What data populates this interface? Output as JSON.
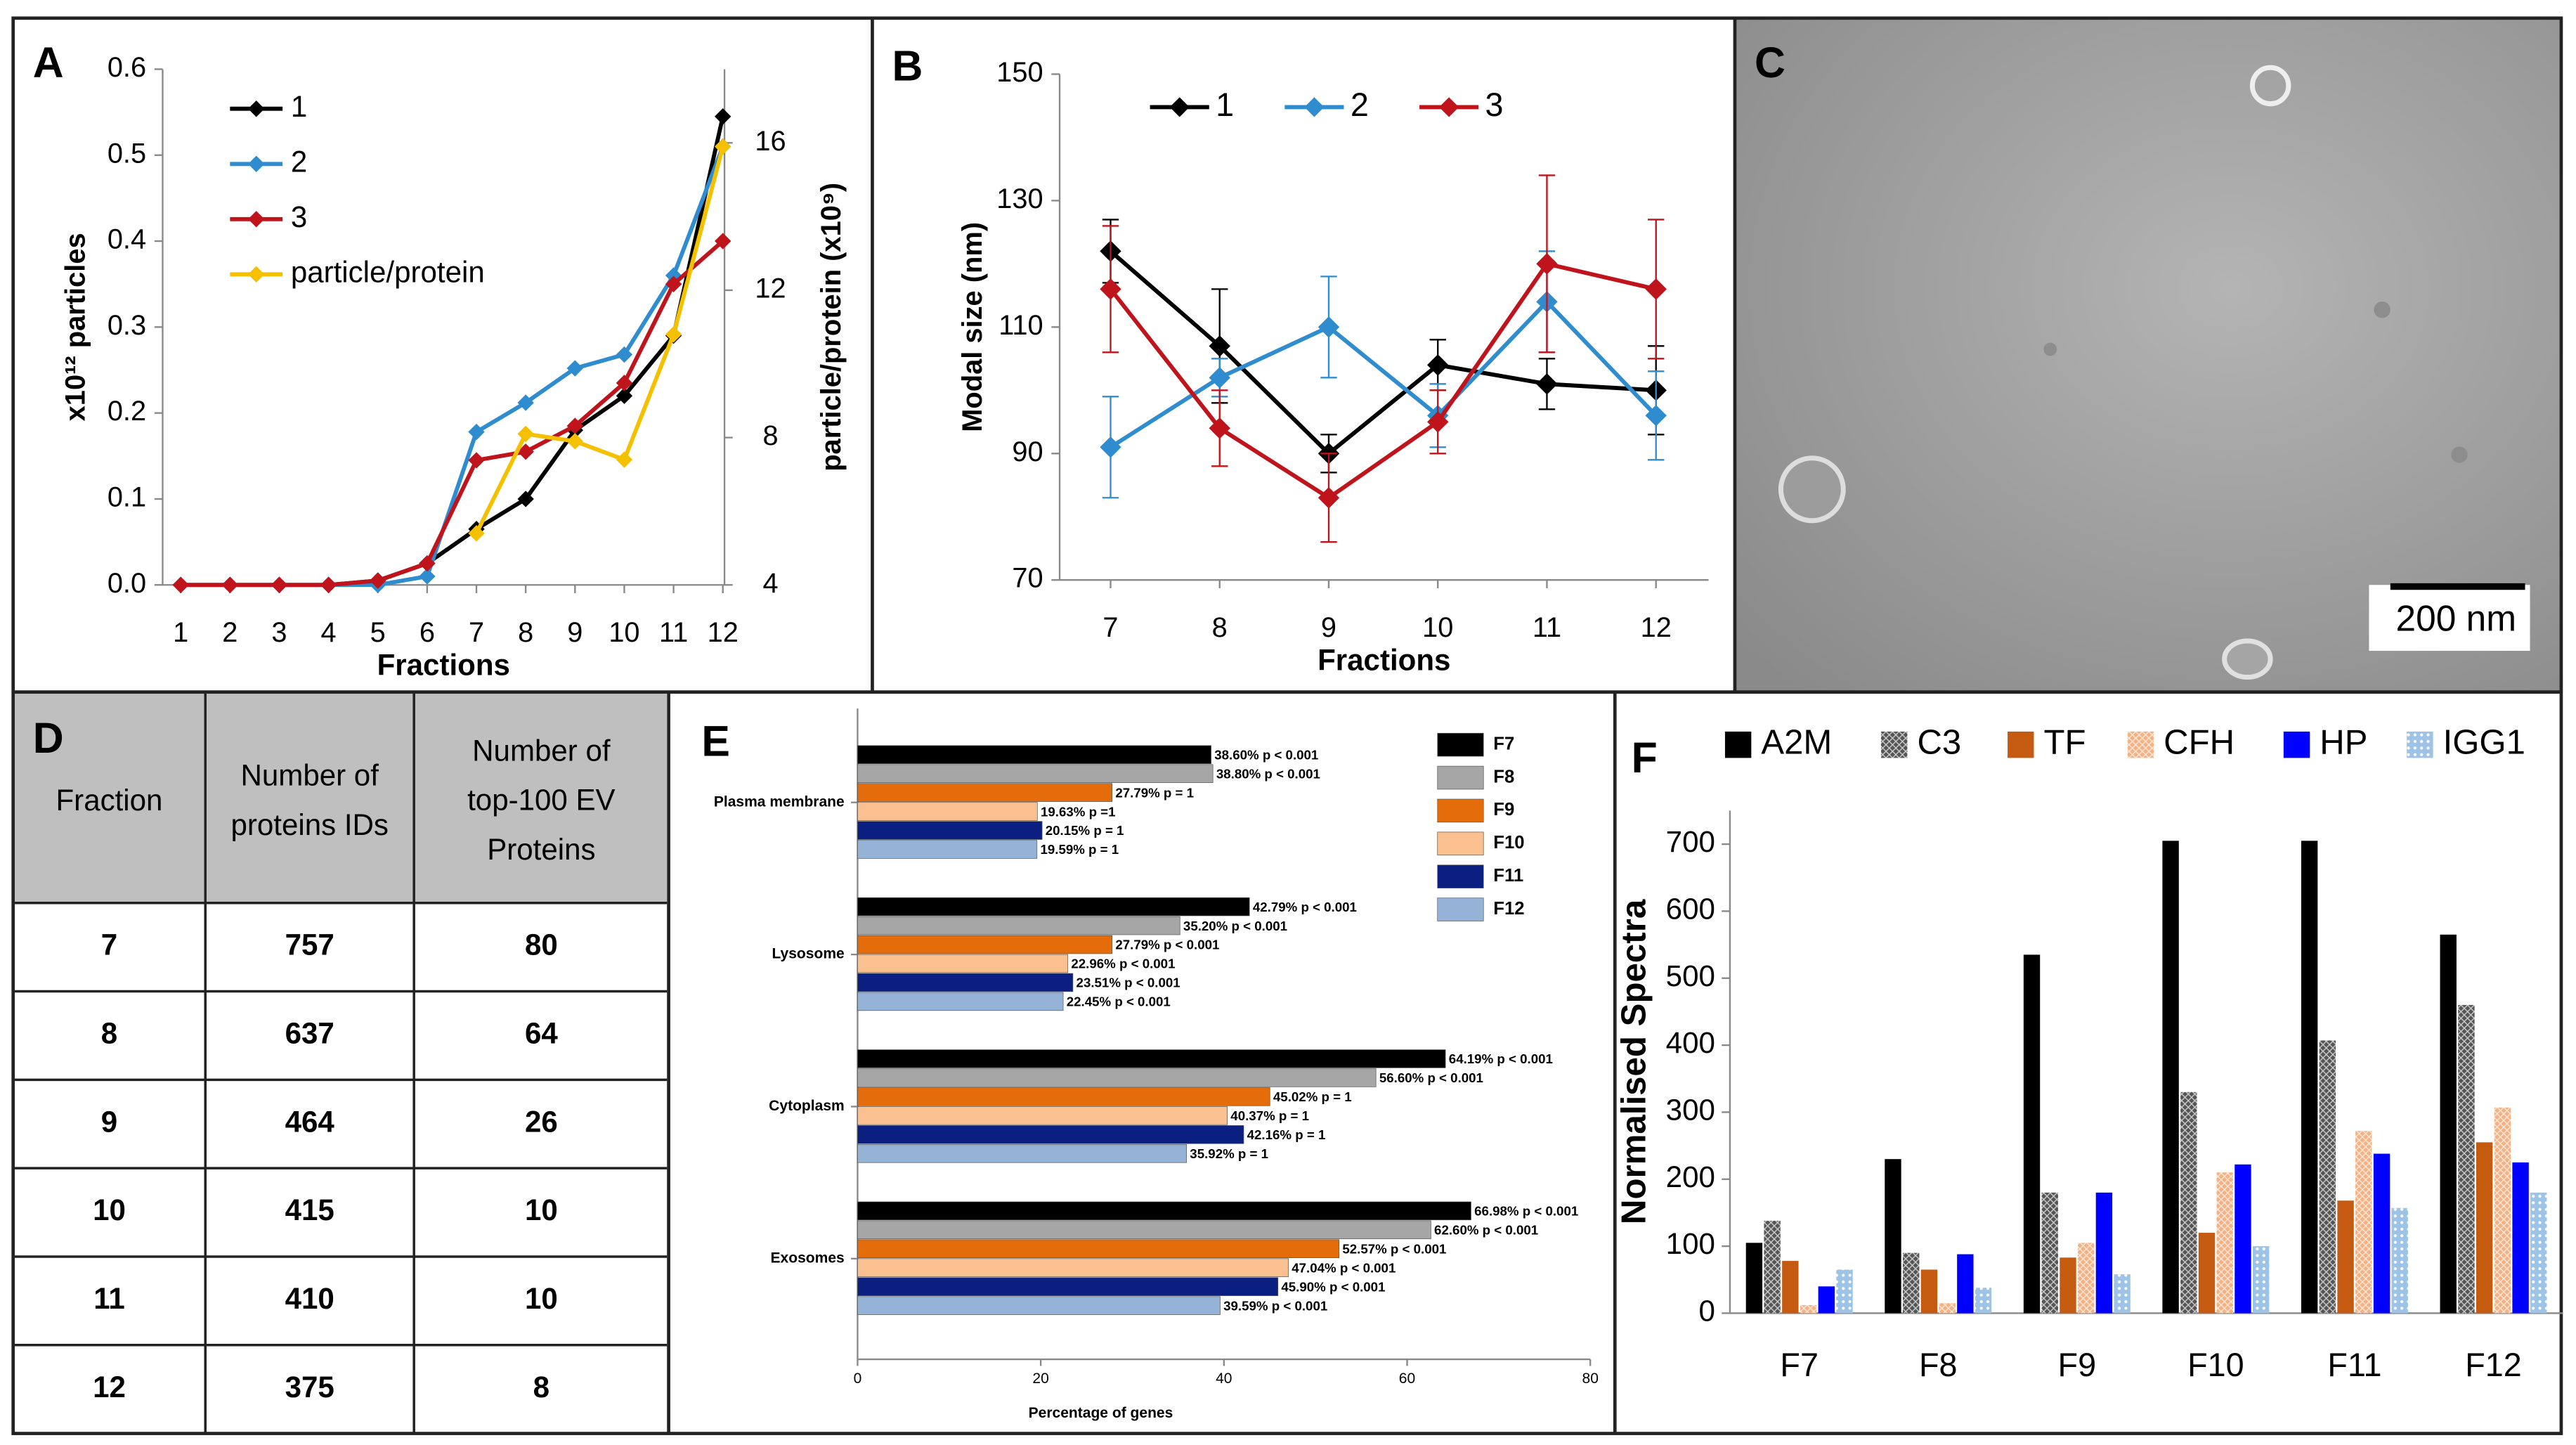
{
  "chart_data": [
    {
      "type": "line",
      "panel": "A",
      "xlabel": "Fractions",
      "ylabel": "x10¹² particles",
      "y2label": "particle/protein (x10⁹)",
      "categories": [
        "1",
        "2",
        "3",
        "4",
        "5",
        "6",
        "7",
        "8",
        "9",
        "10",
        "11",
        "12"
      ],
      "ylim": [
        0,
        0.6
      ],
      "yticks": [
        {
          "value": 0,
          "label": "0.0"
        },
        0.1,
        0.2,
        0.3,
        0.4,
        0.5,
        0.6
      ],
      "y2lim": [
        4,
        18
      ],
      "y2ticks": [
        4,
        8,
        12,
        16
      ],
      "legend": "upper left",
      "series": [
        {
          "name": "1",
          "color": "#000000",
          "values": [
            0,
            0,
            0,
            0,
            0.005,
            0.025,
            0.065,
            0.1,
            0.18,
            0.22,
            0.29,
            0.545
          ]
        },
        {
          "name": "2",
          "color": "#2e8ccf",
          "values": [
            0,
            0,
            0,
            0,
            0,
            0.01,
            0.178,
            0.212,
            0.252,
            0.268,
            0.36,
            0.51
          ]
        },
        {
          "name": "3",
          "color": "#c0141c",
          "values": [
            0,
            0,
            0,
            0,
            0.005,
            0.025,
            0.145,
            0.155,
            0.185,
            0.235,
            0.35,
            0.4
          ]
        },
        {
          "name": "particle/protein",
          "color": "#f5c000",
          "axis": "y2",
          "values": [
            null,
            null,
            null,
            null,
            null,
            null,
            5.4,
            8.1,
            7.9,
            7.4,
            10.8,
            15.9
          ]
        }
      ]
    },
    {
      "type": "line",
      "panel": "B",
      "xlabel": "Fractions",
      "ylabel": "Modal size (nm)",
      "categories": [
        "7",
        "8",
        "9",
        "10",
        "11",
        "12"
      ],
      "ylim": [
        70,
        150
      ],
      "yticks": [
        70,
        90,
        110,
        130,
        150
      ],
      "legend": "upper center",
      "series": [
        {
          "name": "1",
          "color": "#000000",
          "values": [
            122,
            107,
            90,
            104,
            101,
            100
          ],
          "errors": [
            5,
            9,
            3,
            4,
            4,
            7
          ]
        },
        {
          "name": "2",
          "color": "#2e8ccf",
          "values": [
            91,
            102,
            110,
            96,
            114,
            96
          ],
          "errors": [
            8,
            3,
            8,
            5,
            8,
            7
          ]
        },
        {
          "name": "3",
          "color": "#c0141c",
          "values": [
            116,
            94,
            83,
            95,
            120,
            116
          ],
          "errors": [
            10,
            6,
            7,
            5,
            14,
            11
          ]
        }
      ]
    },
    {
      "type": "hbar",
      "panel": "E",
      "xlabel": "Percentage of genes",
      "categories": [
        "Plasma membrane",
        "Lysosome",
        "Cytoplasm",
        "Exosomes"
      ],
      "xlim": [
        0,
        80
      ],
      "xticks": [
        0,
        20,
        40,
        60,
        80
      ],
      "legend": "upper right",
      "series": [
        {
          "name": "F7",
          "color": "#000000",
          "values": [
            38.6,
            42.79,
            64.19,
            66.98
          ],
          "value_labels": [
            "38.60% p < 0.001",
            "42.79% p < 0.001",
            "64.19% p < 0.001",
            "66.98% p < 0.001"
          ]
        },
        {
          "name": "F8",
          "color": "#a6a6a6",
          "values": [
            38.8,
            35.2,
            56.6,
            62.6
          ],
          "value_labels": [
            "38.80% p < 0.001",
            "35.20% p < 0.001",
            "56.60% p < 0.001",
            "62.60% p < 0.001"
          ]
        },
        {
          "name": "F9",
          "color": "#e46c0a",
          "values": [
            27.79,
            27.79,
            45.02,
            52.57
          ],
          "value_labels": [
            "27.79% p = 1",
            "27.79% p < 0.001",
            "45.02% p = 1",
            "52.57% p < 0.001"
          ]
        },
        {
          "name": "F10",
          "color": "#fac090",
          "values": [
            19.63,
            22.96,
            40.37,
            47.04
          ],
          "value_labels": [
            "19.63% p =1",
            "22.96% p < 0.001",
            "40.37% p = 1",
            "47.04% p < 0.001"
          ]
        },
        {
          "name": "F11",
          "color": "#0a1f80",
          "values": [
            20.15,
            23.51,
            42.16,
            45.9
          ],
          "value_labels": [
            "20.15% p = 1",
            "23.51% p < 0.001",
            "42.16% p = 1",
            "45.90% p < 0.001"
          ]
        },
        {
          "name": "F12",
          "color": "#95b3d7",
          "values": [
            19.59,
            22.45,
            35.92,
            39.59
          ],
          "value_labels": [
            "19.59% p = 1",
            "22.45% p < 0.001",
            "35.92% p = 1",
            "39.59% p < 0.001"
          ]
        }
      ]
    },
    {
      "type": "bar",
      "panel": "F",
      "ylabel": "Normalised Spectra",
      "categories": [
        "F7",
        "F8",
        "F9",
        "F10",
        "F11",
        "F12"
      ],
      "ylim": [
        0,
        750
      ],
      "yticks": [
        0,
        100,
        200,
        300,
        400,
        500,
        600,
        700
      ],
      "legend": "top",
      "series": [
        {
          "name": "A2M",
          "color": "#000000",
          "values": [
            105,
            230,
            535,
            705,
            705,
            565
          ]
        },
        {
          "name": "C3",
          "color": "#555555",
          "pattern": "hatched",
          "values": [
            138,
            90,
            180,
            330,
            407,
            460
          ]
        },
        {
          "name": "TF",
          "color": "#c55a11",
          "values": [
            78,
            65,
            83,
            120,
            168,
            255
          ]
        },
        {
          "name": "CFH",
          "color": "#f4b183",
          "pattern": "hatched",
          "values": [
            12,
            15,
            105,
            210,
            272,
            307
          ]
        },
        {
          "name": "HP",
          "color": "#0000ff",
          "values": [
            40,
            88,
            180,
            222,
            238,
            225
          ]
        },
        {
          "name": "IGG1",
          "color": "#9dc3e6",
          "pattern": "dotted",
          "values": [
            65,
            38,
            58,
            100,
            157,
            180
          ]
        }
      ]
    }
  ],
  "photo": {
    "panel": "C",
    "scale_bar": "200 nm"
  },
  "table": {
    "panel": "D",
    "header": [
      "Fraction",
      "Number of proteins IDs",
      "Number of top-100 EV Proteins"
    ],
    "rows": [
      [
        "7",
        "757",
        "80"
      ],
      [
        "8",
        "637",
        "64"
      ],
      [
        "9",
        "464",
        "26"
      ],
      [
        "10",
        "415",
        "10"
      ],
      [
        "11",
        "410",
        "10"
      ],
      [
        "12",
        "375",
        "8"
      ]
    ]
  }
}
